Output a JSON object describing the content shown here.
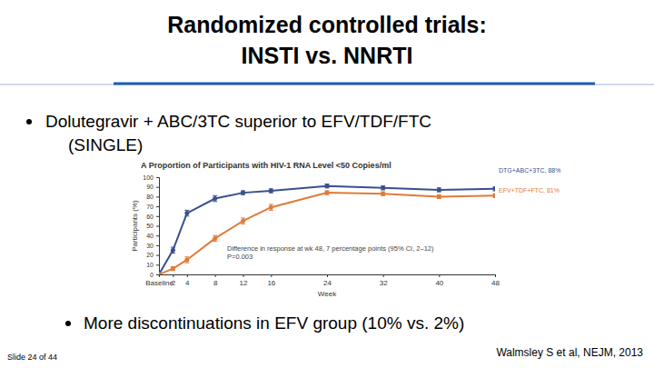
{
  "slide": {
    "title": [
      "Randomized controlled trials:",
      "INSTI vs. NNRTI"
    ],
    "bullets": [
      [
        "Dolutegravir + ABC/3TC superior to EFV/TDF/FTC",
        "(SINGLE)"
      ],
      [
        "More discontinuations in EFV group (10% vs. 2%)"
      ]
    ],
    "footer_left": "Slide 24 of 44",
    "footer_right": "Walmsley S et al, NEJM, 2013"
  },
  "chart_data": {
    "type": "line",
    "title": "A Proportion of Participants with HIV-1 RNA Level <50 Copies/ml",
    "x_label": "Week",
    "y_label": "Participants (%)",
    "annotations": [
      "Difference in response at wk 48, 7 percentage points (95% CI, 2–12)",
      "P=0.003"
    ],
    "x": [
      0,
      2,
      4,
      8,
      12,
      16,
      24,
      32,
      40,
      48
    ],
    "series": [
      {
        "name": "DTG+ABC+3TC, 88%",
        "color": "#3a4f8f",
        "marker": "circle",
        "values": [
          0,
          25,
          63,
          78,
          84,
          86,
          91,
          89,
          87,
          88
        ],
        "errors": [
          0,
          3,
          3,
          3,
          2,
          2,
          2,
          2,
          2,
          2
        ]
      },
      {
        "name": "EFV+TDF+FTC, 81%",
        "color": "#e07b39",
        "marker": "circle",
        "values": [
          0,
          6,
          15,
          37,
          55,
          69,
          84,
          83,
          80,
          81
        ],
        "errors": [
          0,
          2,
          3,
          3,
          3,
          3,
          2,
          2,
          2,
          2
        ]
      }
    ],
    "xlim": [
      0,
      48
    ],
    "xticks": [
      {
        "value": 0,
        "label": "Baseline"
      },
      2,
      4,
      8,
      12,
      16,
      24,
      32,
      40,
      48
    ],
    "ylim": [
      0,
      100
    ],
    "yticks": [
      0,
      10,
      20,
      30,
      40,
      50,
      60,
      70,
      80,
      90,
      100
    ],
    "grid": false
  }
}
